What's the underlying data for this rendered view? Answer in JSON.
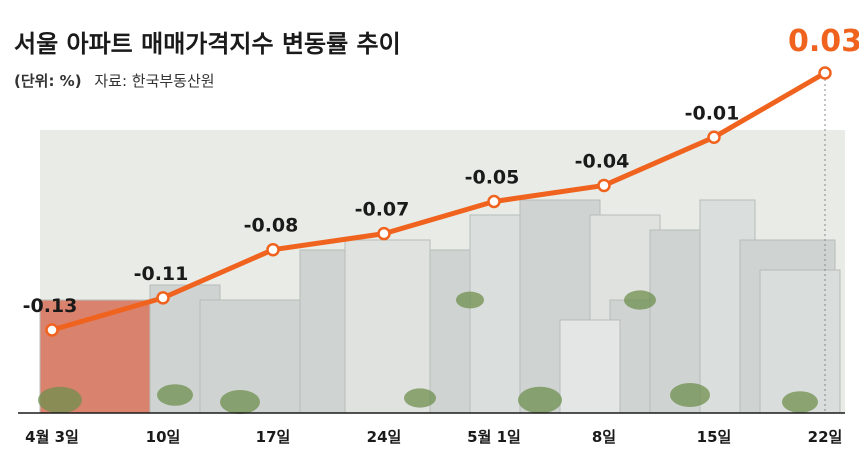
{
  "colors": {
    "line": "#f0631e",
    "marker_fill": "#ffffff",
    "highlight": "#f0631e",
    "text": "#1a1a1a",
    "sky": "#e8ebe6",
    "building": "#cfd4d2",
    "tree": "#6f8f4e",
    "roof": "#d9826e"
  },
  "header": {
    "title": "서울 아파트 매매가격지수 변동률 추이",
    "unit_prefix": "(단위: %)",
    "source": "자료: 한국부동산원"
  },
  "chart_data": {
    "type": "line",
    "title": "서울 아파트 매매가격지수 변동률 추이",
    "unit": "%",
    "source": "자료: 한국부동산원",
    "categories": [
      "4월 3일",
      "10일",
      "17일",
      "24일",
      "5월 1일",
      "8일",
      "15일",
      "22일"
    ],
    "values": [
      -0.13,
      -0.11,
      -0.08,
      -0.07,
      -0.05,
      -0.04,
      -0.01,
      0.03
    ],
    "labels": [
      "-0.13",
      "-0.11",
      "-0.08",
      "-0.07",
      "-0.05",
      "-0.04",
      "-0.01",
      "0.03"
    ],
    "ylim": [
      -0.13,
      0.03
    ],
    "grid": false,
    "legend": "none"
  }
}
